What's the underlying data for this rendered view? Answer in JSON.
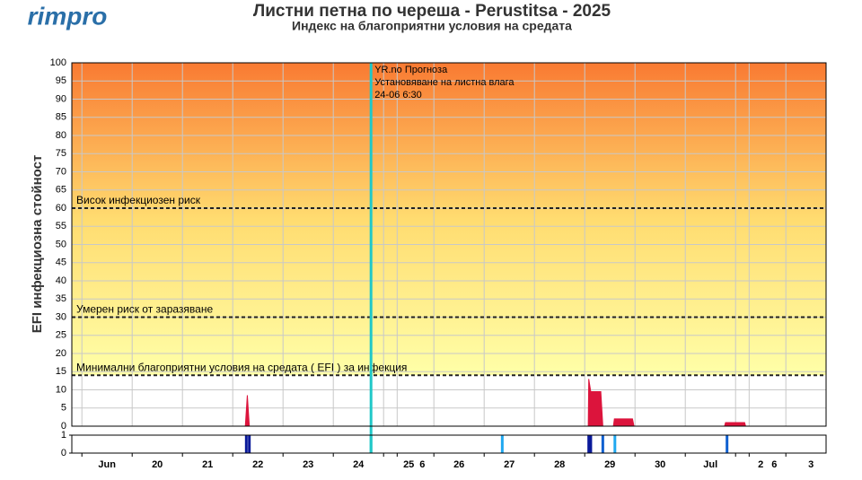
{
  "logo": "rimpro",
  "chart_data": {
    "type": "area",
    "title": "Листни петна по череша - Perustitsa - 2025",
    "subtitle": "Индекс на благоприятни условия на средата",
    "ylabel": "EFI инфекциозна стойност",
    "ylim": [
      0,
      100
    ],
    "yticks": [
      0,
      5,
      10,
      15,
      20,
      25,
      30,
      35,
      40,
      45,
      50,
      55,
      60,
      65,
      70,
      75,
      80,
      85,
      90,
      95,
      100
    ],
    "xlim": [
      -0.2,
      14.8
    ],
    "xticks": [
      {
        "value": 0,
        "label": "Jun"
      },
      {
        "value": 1,
        "label": "20"
      },
      {
        "value": 2,
        "label": "21"
      },
      {
        "value": 3,
        "label": "22"
      },
      {
        "value": 4,
        "label": "23"
      },
      {
        "value": 5,
        "label": "24"
      },
      {
        "value": 6,
        "label": "25"
      },
      {
        "value": 6.27,
        "label": "6"
      },
      {
        "value": 7,
        "label": "26"
      },
      {
        "value": 8,
        "label": "27"
      },
      {
        "value": 9,
        "label": "28"
      },
      {
        "value": 10,
        "label": "29"
      },
      {
        "value": 11,
        "label": "30"
      },
      {
        "value": 12,
        "label": "Jul"
      },
      {
        "value": 13,
        "label": "2"
      },
      {
        "value": 13.27,
        "label": "6"
      },
      {
        "value": 14,
        "label": "3"
      }
    ],
    "grid": true,
    "series": [
      {
        "color": "#dc143c",
        "x": [
          3.25,
          3.29,
          3.33,
          10.07,
          10.08,
          10.12,
          10.32,
          10.36,
          10.57,
          10.59,
          10.95,
          10.98,
          12.78,
          12.8,
          13.18,
          13.2
        ],
        "values": [
          0,
          8.5,
          0,
          0,
          13,
          9.5,
          9.5,
          0,
          0,
          2,
          2,
          0,
          0,
          1,
          1,
          0
        ]
      }
    ],
    "thresholds": [
      {
        "value": 60,
        "label": "Висок инфекциозен риск"
      },
      {
        "value": 30,
        "label": "Умерен риск от заразяване"
      },
      {
        "value": 14,
        "label": "Минимални благоприятни условия на средата ( EFI ) за инфекция"
      }
    ],
    "marker": {
      "x": 5.75,
      "color": "#20c8c8",
      "lines": [
        "YR.no Прогноза",
        "Установяване на листна влага",
        "24-06 6:30"
      ]
    },
    "strip": {
      "ylim": [
        0,
        1
      ],
      "yticks": [
        0,
        1
      ],
      "x": [
        3.27,
        3.33,
        5.75,
        8.36,
        10.08,
        10.12,
        10.36,
        10.6,
        12.83
      ],
      "values": [
        1,
        1,
        1,
        1,
        1,
        1,
        1,
        1,
        1
      ],
      "colors": [
        "#0a1a9a",
        "#0a1a9a",
        "#20c8c8",
        "#20a8f0",
        "#0a1a9a",
        "#0a1a9a",
        "#1060d0",
        "#20a8f0",
        "#1060d0"
      ]
    }
  }
}
